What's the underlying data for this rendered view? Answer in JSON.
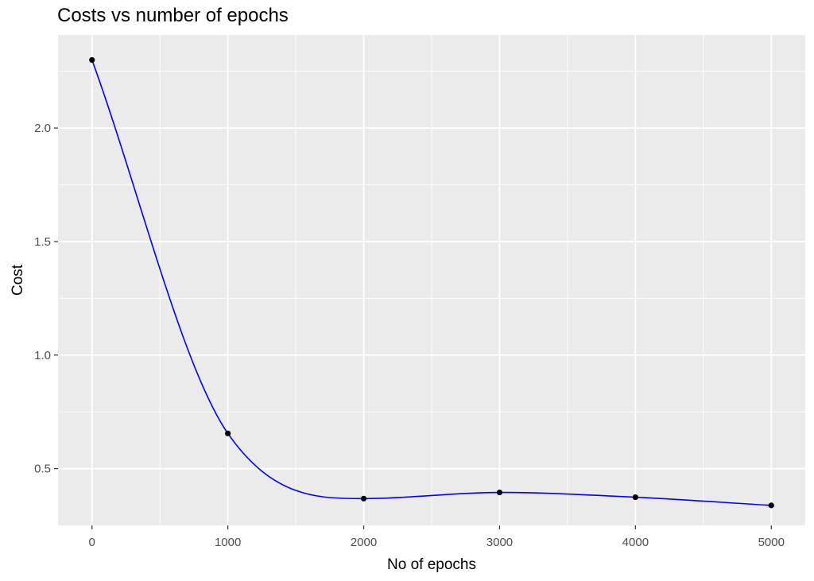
{
  "chart_data": {
    "type": "line",
    "title": "Costs vs number of epochs",
    "xlabel": "No of epochs",
    "ylabel": "Cost",
    "x": [
      0,
      1000,
      2000,
      3000,
      4000,
      5000
    ],
    "series": [
      {
        "values": [
          2.3,
          0.655,
          0.368,
          0.395,
          0.374,
          0.338
        ],
        "line_color": "#0000ff",
        "point_color": "#000000",
        "interpolation": "spline"
      }
    ],
    "xlim": [
      -250,
      5250
    ],
    "ylim": [
      0.25,
      2.41
    ],
    "x_ticks": [
      0,
      1000,
      2000,
      3000,
      4000,
      5000
    ],
    "x_tick_labels": [
      "0",
      "1000",
      "2000",
      "3000",
      "4000",
      "5000"
    ],
    "x_minor_ticks": [
      500,
      1500,
      2500,
      3500,
      4500
    ],
    "y_ticks": [
      0.5,
      1.0,
      1.5,
      2.0
    ],
    "y_tick_labels": [
      "0.5",
      "1.0",
      "1.5",
      "2.0"
    ],
    "y_minor_ticks": [
      0.75,
      1.25,
      1.75,
      2.25
    ],
    "grid": true,
    "legend": "none",
    "panel_background": "#ebebeb",
    "grid_color": "#ffffff"
  }
}
